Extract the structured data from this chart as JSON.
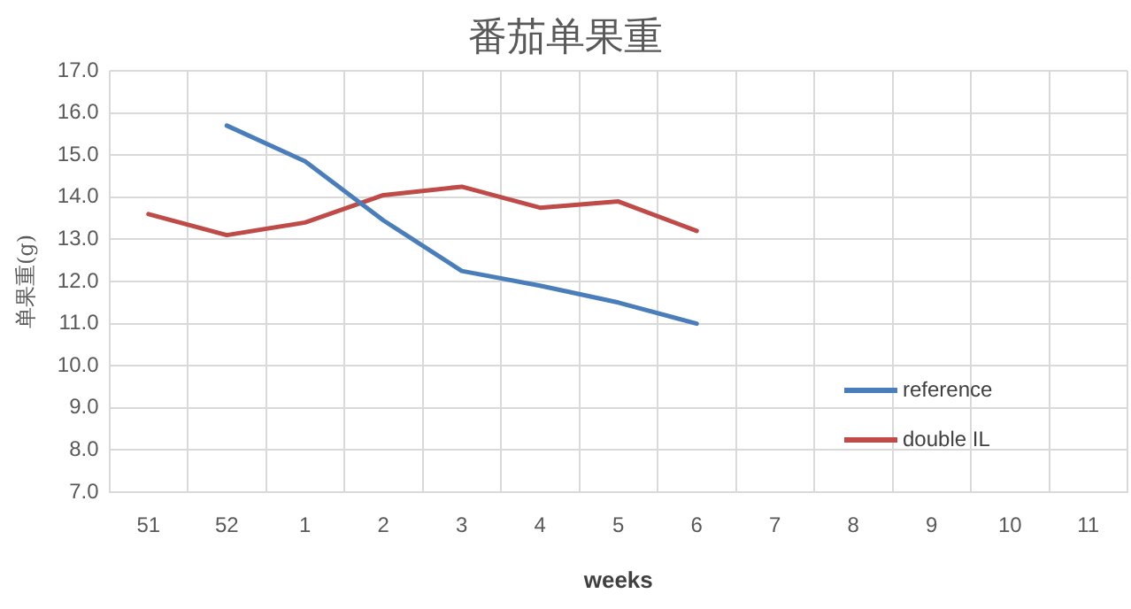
{
  "chart_data": {
    "type": "line",
    "title": "番茄单果重",
    "xlabel": "weeks",
    "ylabel": "单果重(g)",
    "categories": [
      "51",
      "52",
      "1",
      "2",
      "3",
      "4",
      "5",
      "6",
      "7",
      "8",
      "9",
      "10",
      "11"
    ],
    "series": [
      {
        "name": "reference",
        "color": "#4a7ebb",
        "values": [
          null,
          15.7,
          14.85,
          13.45,
          12.25,
          11.9,
          11.5,
          11.0,
          null,
          null,
          null,
          null,
          null
        ]
      },
      {
        "name": "double IL",
        "color": "#be4b48",
        "values": [
          13.6,
          13.1,
          13.4,
          14.05,
          14.25,
          13.75,
          13.9,
          13.2,
          null,
          null,
          null,
          null,
          null
        ]
      }
    ],
    "ylim": [
      7,
      17
    ],
    "yticks": [
      {
        "value": 7,
        "label": "7.0"
      },
      {
        "value": 8,
        "label": "8.0"
      },
      {
        "value": 9,
        "label": "9.0"
      },
      {
        "value": 10,
        "label": "10.0"
      },
      {
        "value": 11,
        "label": "11.0"
      },
      {
        "value": 12,
        "label": "12.0"
      },
      {
        "value": 13,
        "label": "13.0"
      },
      {
        "value": 14,
        "label": "14.0"
      },
      {
        "value": 15,
        "label": "15.0"
      },
      {
        "value": 16,
        "label": "16.0"
      },
      {
        "value": 17,
        "label": "17.0"
      }
    ],
    "grid": true,
    "legend": "bottom right",
    "marker": "none",
    "line_style": "solid"
  }
}
